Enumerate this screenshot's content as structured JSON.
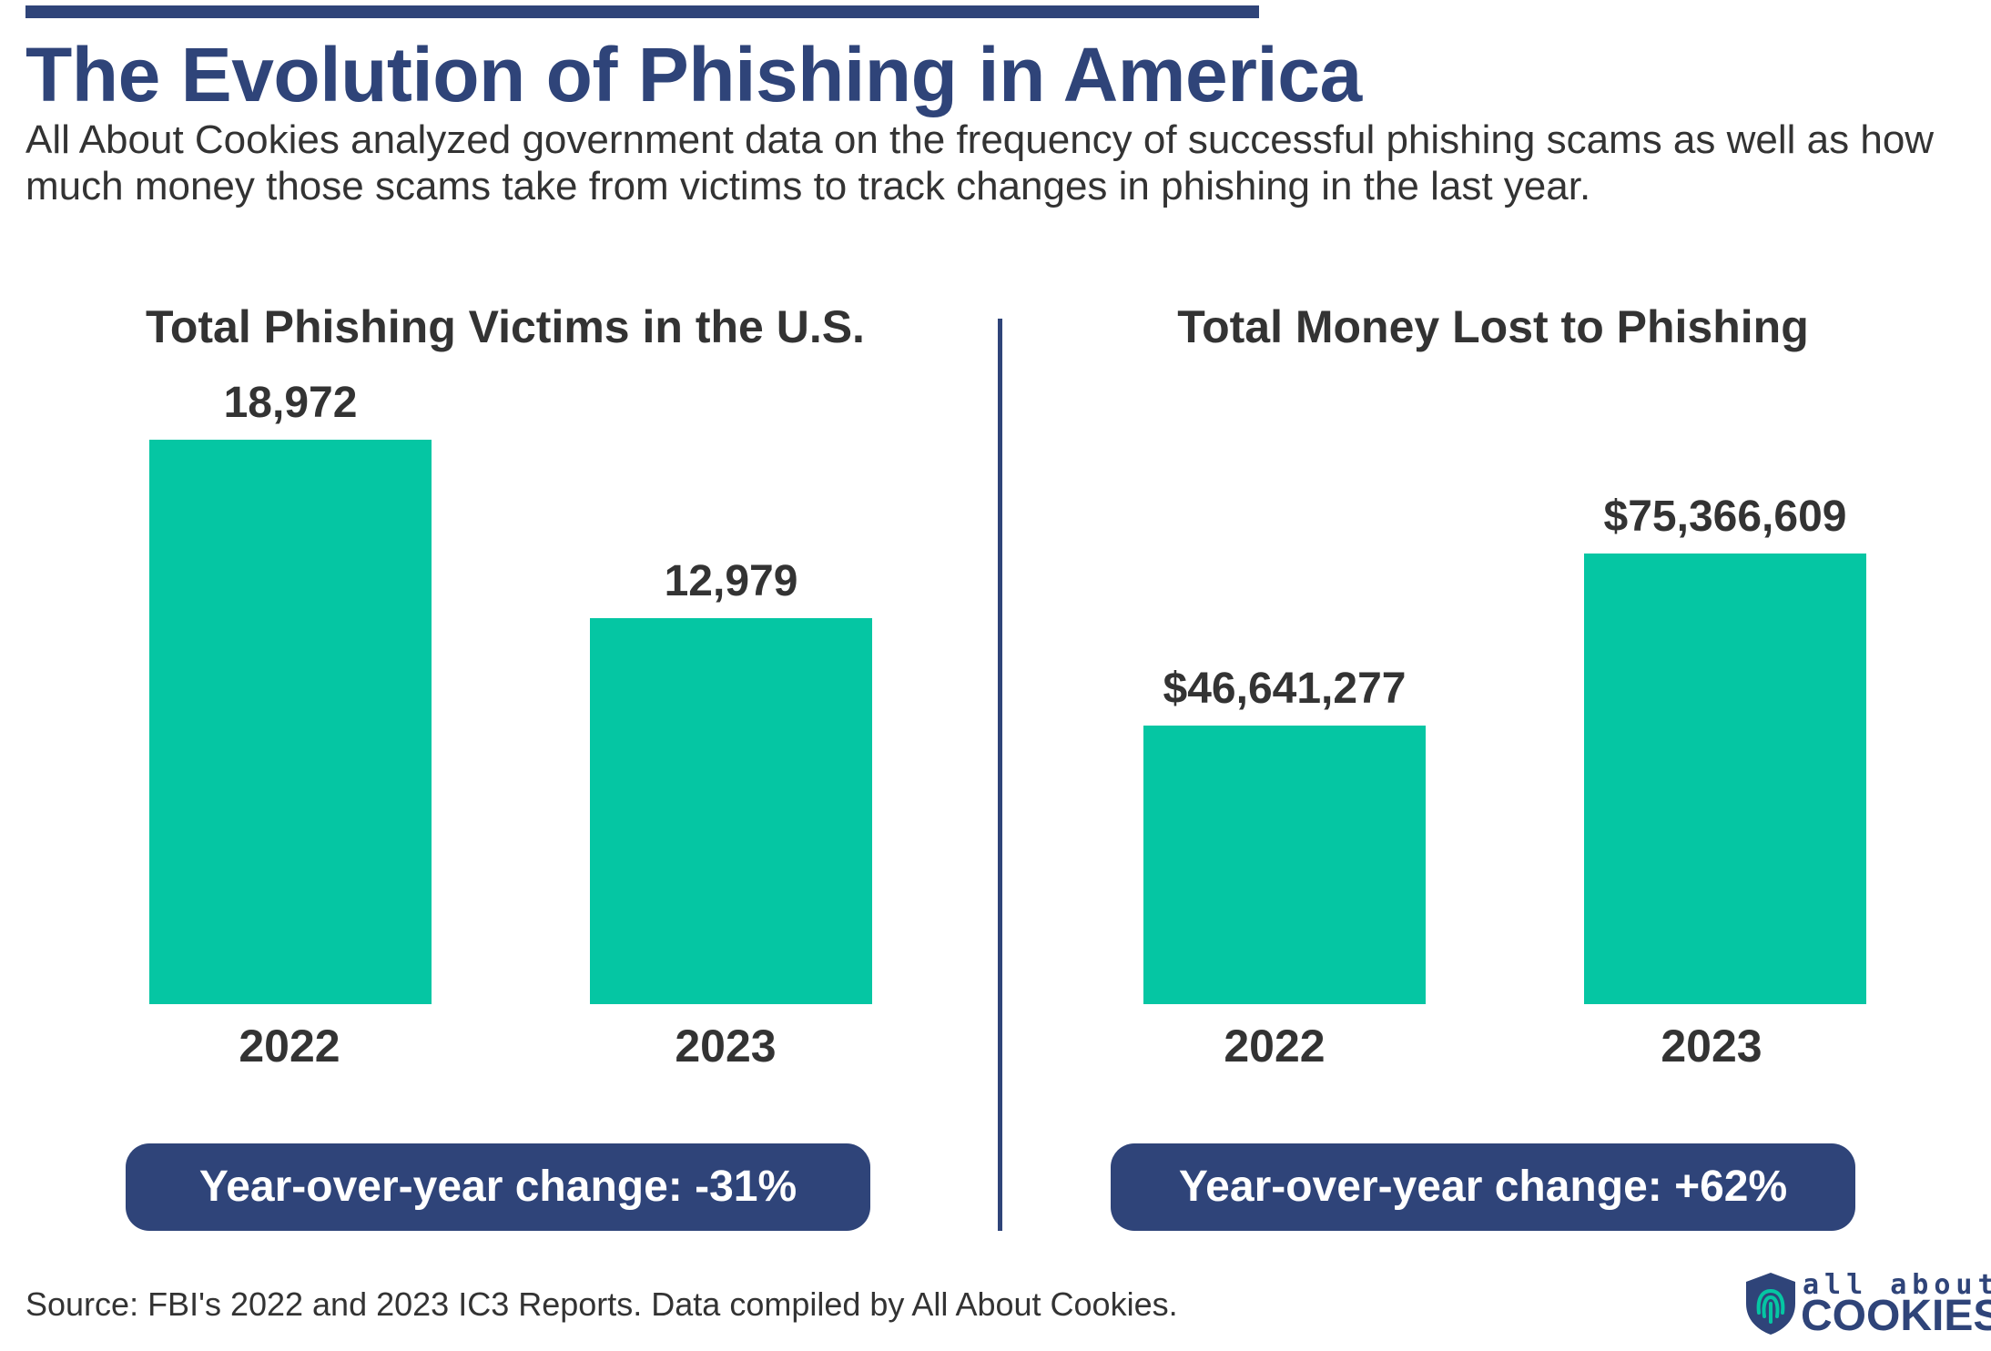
{
  "header": {
    "title": "The Evolution of Phishing in America",
    "subtitle": "All About Cookies analyzed government data on the frequency of successful phishing scams as well as how much money those scams take from victims to track changes in phishing in the last year."
  },
  "colors": {
    "bar": "#05c6a3",
    "accent": "#2f4479",
    "text": "#333333"
  },
  "chart_data": [
    {
      "type": "bar",
      "title": "Total Phishing Victims in the U.S.",
      "categories": [
        "2022",
        "2023"
      ],
      "values": [
        18972,
        12979
      ],
      "value_labels": [
        "18,972",
        "12,979"
      ],
      "grid": false,
      "change_label": "Year-over-year change: -31%"
    },
    {
      "type": "bar",
      "title": "Total Money Lost to Phishing",
      "categories": [
        "2022",
        "2023"
      ],
      "values": [
        46641277,
        75366609
      ],
      "value_labels": [
        "$46,641,277",
        "$75,366,609"
      ],
      "grid": false,
      "change_label": "Year-over-year change: +62%"
    }
  ],
  "footer": {
    "source": "Source: FBI's 2022 and 2023 IC3 Reports. Data compiled by All About Cookies.",
    "logo_top": "all about",
    "logo_bottom": "COOKIES",
    "logo_icon": "fingerprint-shield-icon"
  }
}
